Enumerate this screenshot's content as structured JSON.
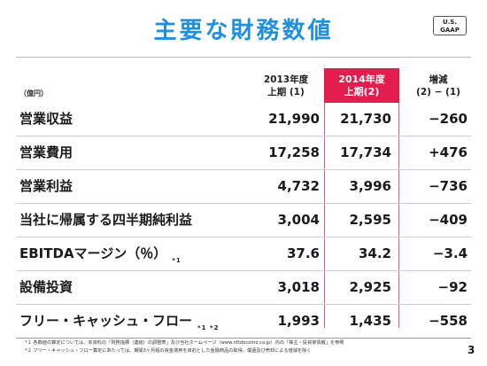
{
  "title": "主要な財務数値",
  "badge": {
    "line1": "U.S.",
    "line2": "GAAP"
  },
  "unit": "（億円）",
  "columns": [
    {
      "line1": "2013年度",
      "line2": "上期 (1)"
    },
    {
      "line1": "2014年度",
      "line2": "上期(2)"
    },
    {
      "line1": "増減",
      "line2": "(2) − (1)"
    }
  ],
  "rows": [
    {
      "label": "営業収益",
      "note": "",
      "v1": "21,990",
      "v2": "21,730",
      "v3": "−260"
    },
    {
      "label": "営業費用",
      "note": "",
      "v1": "17,258",
      "v2": "17,734",
      "v3": "+476"
    },
    {
      "label": "営業利益",
      "note": "",
      "v1": "4,732",
      "v2": "3,996",
      "v3": "−736"
    },
    {
      "label": "当社に帰属する四半期純利益",
      "note": "",
      "v1": "3,004",
      "v2": "2,595",
      "v3": "−409"
    },
    {
      "label": "EBITDAマージン（％）",
      "note": "*1",
      "v1": "37.6",
      "v2": "34.2",
      "v3": "−3.4"
    },
    {
      "label": "設備投資",
      "note": "",
      "v1": "3,018",
      "v2": "2,925",
      "v3": "−92"
    },
    {
      "label": "フリー・キャッシュ・フロー",
      "note": "*1 *2",
      "v1": "1,993",
      "v2": "1,435",
      "v3": "−558"
    }
  ],
  "footnotes": [
    "*１ 各数値の算定については、本資料の「財務指標（連結）の調整表」及び当社ホームページ（www.nttdocomo.co.jp）内の「株主・投資家情報」を参照",
    "*２ フリー・キャッシュ・フロー算定にあたっては、期間3ヶ月超の資金運用を目的とした金融商品の取得、償還及び売却による増減を除く"
  ],
  "page_number": "3"
}
